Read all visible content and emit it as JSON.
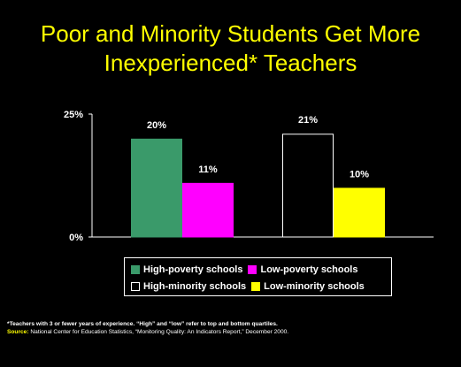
{
  "chart_data": {
    "type": "bar",
    "title": "Poor and Minority Students Get More Inexperienced* Teachers",
    "ylim": [
      0,
      25
    ],
    "yticks": [
      "0%",
      "25%"
    ],
    "groups": [
      {
        "bars": [
          {
            "name": "High-poverty schools",
            "value": 20,
            "label": "20%",
            "color": "#3a9a6a",
            "stroke": "#3a9a6a"
          },
          {
            "name": "Low-poverty schools",
            "value": 11,
            "label": "11%",
            "color": "#ff00ff",
            "stroke": "#ff00ff"
          }
        ]
      },
      {
        "bars": [
          {
            "name": "High-minority schools",
            "value": 21,
            "label": "21%",
            "color": "#000000",
            "stroke": "#ffffff"
          },
          {
            "name": "Low-minority schools",
            "value": 10,
            "label": "10%",
            "color": "#ffff00",
            "stroke": "#ffff00"
          }
        ]
      }
    ],
    "legend": [
      [
        {
          "label": "High-poverty schools",
          "color": "#3a9a6a",
          "stroke": "#3a9a6a"
        },
        {
          "label": "Low-poverty schools",
          "color": "#ff00ff",
          "stroke": "#ff00ff"
        }
      ],
      [
        {
          "label": "High-minority schools",
          "color": "#000000",
          "stroke": "#ffffff"
        },
        {
          "label": "Low-minority schools",
          "color": "#ffff00",
          "stroke": "#ffff00"
        }
      ]
    ]
  },
  "footnote": {
    "note": "*Teachers with 3 or fewer years of experience.  “High” and “low” refer to top and bottom quartiles.",
    "source_label": "Source:",
    "source_text": "National Center for Education Statistics, “Monitoring Quality: An Indicators Report,” December 2000."
  },
  "colors": {
    "background": "#000000",
    "title": "#ffff00",
    "text": "#ffffff"
  }
}
